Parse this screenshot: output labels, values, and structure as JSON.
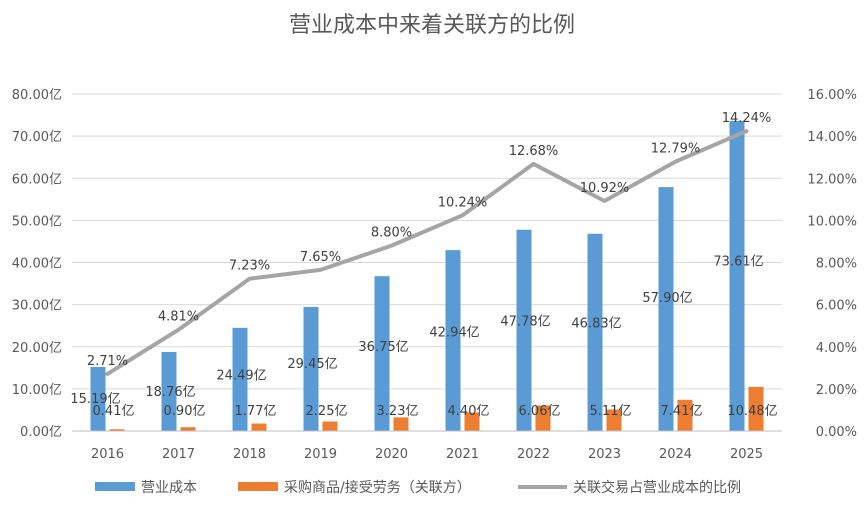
{
  "chart_data": {
    "type": "bar+line",
    "title": "营业成本中来着关联方的比例",
    "categories": [
      "2016",
      "2017",
      "2018",
      "2019",
      "2020",
      "2021",
      "2022",
      "2023",
      "2024",
      "2025"
    ],
    "series": [
      {
        "name": "营业成本",
        "kind": "bar",
        "axis": "left",
        "color": "#5B9BD5",
        "values": [
          15.19,
          18.76,
          24.49,
          29.45,
          36.75,
          42.94,
          47.78,
          46.83,
          57.9,
          73.61
        ],
        "labels": [
          "15.19亿",
          "18.76亿",
          "24.49亿",
          "29.45亿",
          "36.75亿",
          "42.94亿",
          "47.78亿",
          "46.83亿",
          "57.90亿",
          "73.61亿"
        ]
      },
      {
        "name": "采购商品/接受劳务（关联方）",
        "kind": "bar",
        "axis": "left",
        "color": "#ED7D31",
        "values": [
          0.41,
          0.9,
          1.77,
          2.25,
          3.23,
          4.4,
          6.06,
          5.11,
          7.41,
          10.48
        ],
        "labels": [
          "0.41亿",
          "0.90亿",
          "1.77亿",
          "2.25亿",
          "3.23亿",
          "4.40亿",
          "6.06亿",
          "5.11亿",
          "7.41亿",
          "10.48亿"
        ]
      },
      {
        "name": "关联交易占营业成本的比例",
        "kind": "line",
        "axis": "right",
        "color": "#A5A5A5",
        "values": [
          2.71,
          4.81,
          7.23,
          7.65,
          8.8,
          10.24,
          12.68,
          10.92,
          12.79,
          14.24
        ],
        "labels": [
          "2.71%",
          "4.81%",
          "7.23%",
          "7.65%",
          "8.80%",
          "10.24%",
          "12.68%",
          "10.92%",
          "12.79%",
          "14.24%"
        ]
      }
    ],
    "left_axis": {
      "min": 0,
      "max": 80,
      "ticks": [
        0,
        10,
        20,
        30,
        40,
        50,
        60,
        70,
        80
      ],
      "tick_labels": [
        "0.00亿",
        "10.00亿",
        "20.00亿",
        "30.00亿",
        "40.00亿",
        "50.00亿",
        "60.00亿",
        "70.00亿",
        "80.00亿"
      ]
    },
    "right_axis": {
      "min": 0,
      "max": 16,
      "ticks": [
        0,
        2,
        4,
        6,
        8,
        10,
        12,
        14,
        16
      ],
      "tick_labels": [
        "0.00%",
        "2.00%",
        "4.00%",
        "6.00%",
        "8.00%",
        "10.00%",
        "12.00%",
        "14.00%",
        "16.00%"
      ]
    },
    "grid": true,
    "legend_position": "bottom"
  }
}
